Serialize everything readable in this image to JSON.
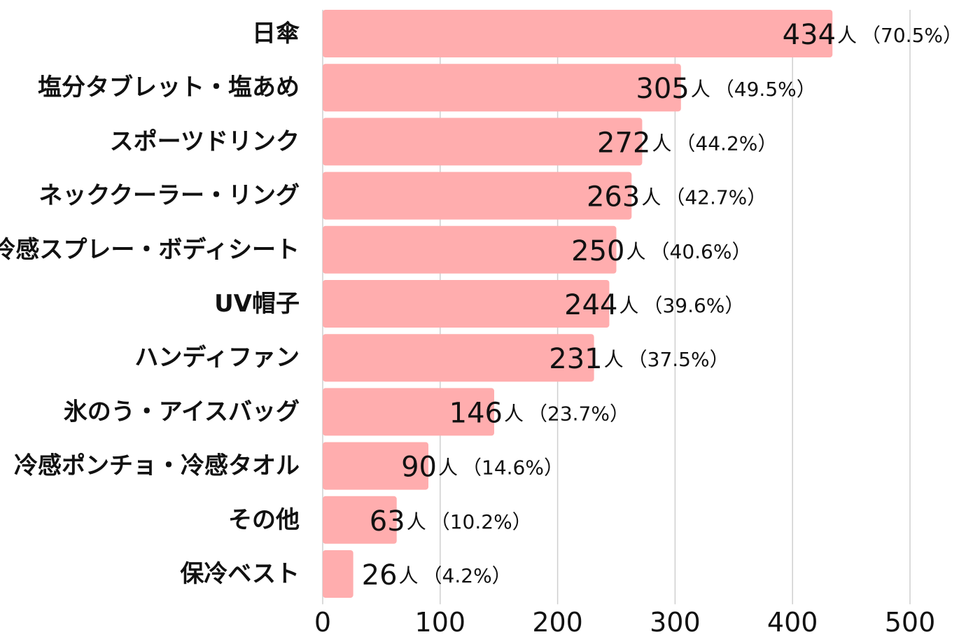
{
  "chart_data": {
    "type": "bar",
    "orientation": "horizontal",
    "categories": [
      "日傘",
      "塩分タブレット・塩あめ",
      "スポーツドリンク",
      "ネッククーラー・リング",
      "冷感スプレー・ボディシート",
      "UV帽子",
      "ハンディファン",
      "氷のう・アイスバッグ",
      "冷感ポンチョ・冷感タオル",
      "その他",
      "保冷ベスト"
    ],
    "values": [
      434,
      305,
      272,
      263,
      250,
      244,
      231,
      146,
      90,
      63,
      26
    ],
    "unit": "人",
    "percents": [
      "（70.5%）",
      "（49.5%）",
      "（44.2%）",
      "（42.7%）",
      "（40.6%）",
      "（39.6%）",
      "（37.5%）",
      "（23.7%）",
      "（14.6%）",
      "（10.2%）",
      "（4.2%）"
    ],
    "xlim": [
      0,
      500
    ],
    "xticks": [
      0,
      100,
      200,
      300,
      400,
      500
    ],
    "grid": "vertical",
    "bar_color": "#ffadae",
    "title": "",
    "xlabel": "",
    "ylabel": ""
  }
}
